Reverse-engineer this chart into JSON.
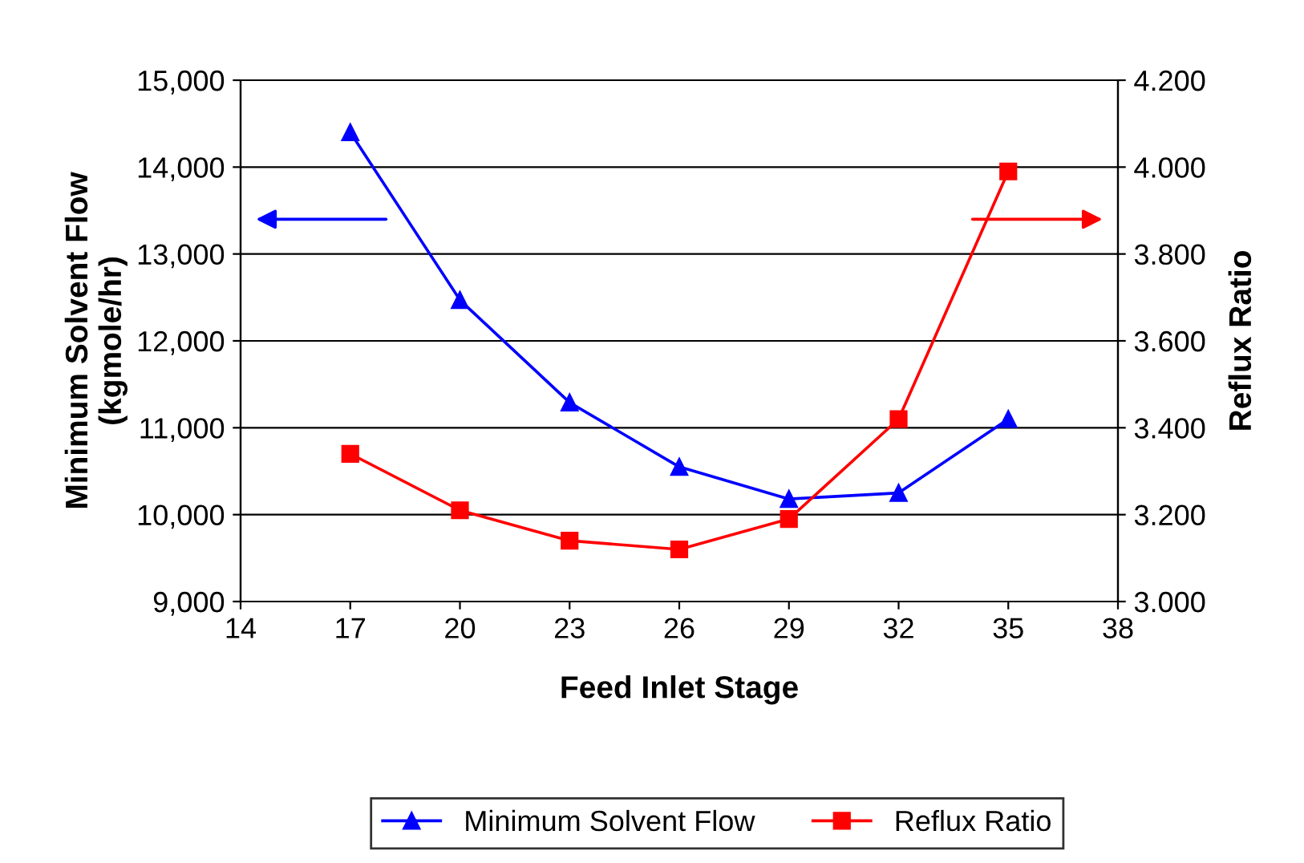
{
  "chart_data": {
    "type": "line",
    "xlabel": "Feed Inlet Stage",
    "ylabel": "Minimum Solvent Flow\n(kgmole/hr)",
    "y2label": "Reflux Ratio",
    "x": [
      17,
      20,
      23,
      26,
      29,
      32,
      35
    ],
    "series": [
      {
        "name": "Minimum Solvent Flow",
        "color": "#0000ff",
        "marker": "triangle",
        "values": [
          14400,
          12470,
          11290,
          10550,
          10180,
          10250,
          11100
        ]
      },
      {
        "name": "Reflux Ratio",
        "color": "#ff0000",
        "marker": "square",
        "axis": "y2",
        "values": [
          3.34,
          3.21,
          3.14,
          3.12,
          3.19,
          3.42,
          3.99
        ]
      }
    ],
    "xlim": [
      14,
      38
    ],
    "xticks": [
      14,
      17,
      20,
      23,
      26,
      29,
      32,
      35,
      38
    ],
    "ylim": [
      9000,
      15000
    ],
    "yticks": [
      {
        "value": 9000,
        "label": "9,000"
      },
      {
        "value": 10000,
        "label": "10,000"
      },
      {
        "value": 11000,
        "label": "11,000"
      },
      {
        "value": 12000,
        "label": "12,000"
      },
      {
        "value": 13000,
        "label": "13,000"
      },
      {
        "value": 14000,
        "label": "14,000"
      },
      {
        "value": 15000,
        "label": "15,000"
      }
    ],
    "y2lim": [
      3.0,
      4.2
    ],
    "y2ticks": [
      {
        "value": 3.0,
        "label": "3.000"
      },
      {
        "value": 3.2,
        "label": "3.200"
      },
      {
        "value": 3.4,
        "label": "3.400"
      },
      {
        "value": 3.6,
        "label": "3.600"
      },
      {
        "value": 3.8,
        "label": "3.800"
      },
      {
        "value": 4.0,
        "label": "4.000"
      },
      {
        "value": 4.2,
        "label": "4.200"
      }
    ],
    "grid": "y",
    "legend": "bottom",
    "line_style": "solid"
  }
}
